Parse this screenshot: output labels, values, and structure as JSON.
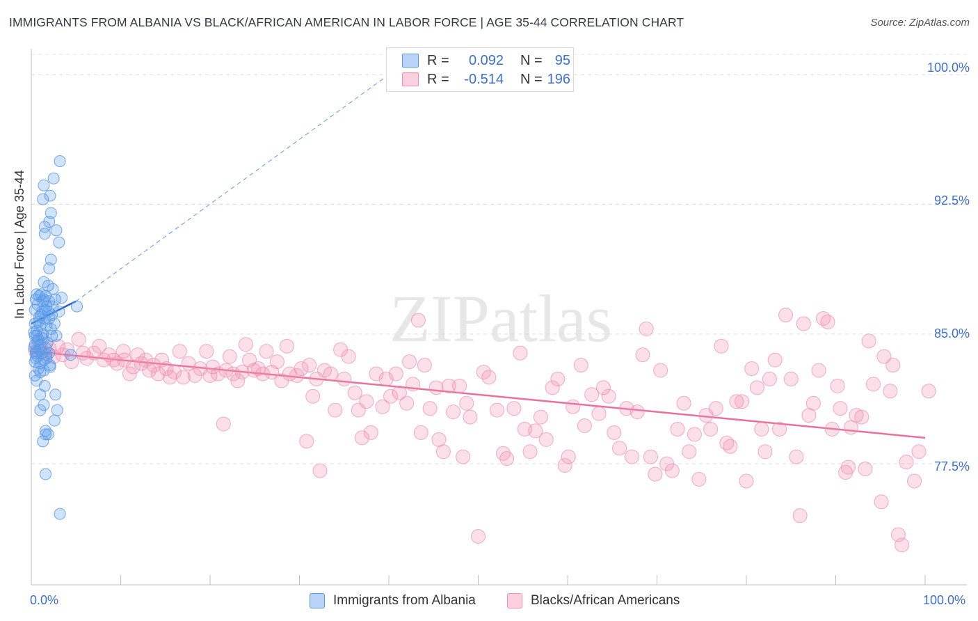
{
  "title": "IMMIGRANTS FROM ALBANIA VS BLACK/AFRICAN AMERICAN IN LABOR FORCE | AGE 35-44 CORRELATION CHART",
  "source": "Source: ZipAtlas.com",
  "watermark": "ZIPatlas",
  "legend": {
    "rows": [
      {
        "r_label": "R =",
        "r_value": "0.092",
        "n_label": "N =",
        "n_value": "95",
        "color": "#5b9ae8"
      },
      {
        "r_label": "R =",
        "r_value": "-0.514",
        "n_label": "N =",
        "n_value": "196",
        "color": "#f28fb0"
      }
    ]
  },
  "chart_data": {
    "type": "scatter",
    "title": "IMMIGRANTS FROM ALBANIA VS BLACK/AFRICAN AMERICAN IN LABOR FORCE | AGE 35-44 CORRELATION CHART",
    "xlabel": "",
    "ylabel": "In Labor Force | Age 35-44",
    "xlim": [
      0,
      100
    ],
    "ylim": [
      70.5,
      101.5
    ],
    "x_tick_labels": [
      "0.0%",
      "100.0%"
    ],
    "y_ticks": [
      77.5,
      85.0,
      92.5,
      100.0
    ],
    "y_tick_labels": [
      "77.5%",
      "85.0%",
      "92.5%",
      "100.0%"
    ],
    "series": [
      {
        "name": "Immigrants from Albania",
        "color": "#5b9ae8",
        "trend": {
          "x0": 0,
          "y0": 85.6,
          "x1": 5,
          "y1": 86.9,
          "extended_to_x": 40,
          "extended_y": 100.0
        },
        "points": [
          [
            3.2,
            95.0
          ],
          [
            1.4,
            93.6
          ],
          [
            2.5,
            94.0
          ],
          [
            1.3,
            92.8
          ],
          [
            2.1,
            93.0
          ],
          [
            2.2,
            92.0
          ],
          [
            2.0,
            91.5
          ],
          [
            1.5,
            91.2
          ],
          [
            2.8,
            91.0
          ],
          [
            3.1,
            90.3
          ],
          [
            1.5,
            90.8
          ],
          [
            2.2,
            89.3
          ],
          [
            2.0,
            88.8
          ],
          [
            1.4,
            88.0
          ],
          [
            1.9,
            87.8
          ],
          [
            2.4,
            87.6
          ],
          [
            0.6,
            87.3
          ],
          [
            1.1,
            87.3
          ],
          [
            1.6,
            87.2
          ],
          [
            3.4,
            87.1
          ],
          [
            0.5,
            87.0
          ],
          [
            1.3,
            86.9
          ],
          [
            2.0,
            86.9
          ],
          [
            2.7,
            87.0
          ],
          [
            0.7,
            86.7
          ],
          [
            1.7,
            86.6
          ],
          [
            2.4,
            86.6
          ],
          [
            5.1,
            86.6
          ],
          [
            0.4,
            86.4
          ],
          [
            1.2,
            86.3
          ],
          [
            3.1,
            86.3
          ],
          [
            0.9,
            86.0
          ],
          [
            1.5,
            85.9
          ],
          [
            2.0,
            85.9
          ],
          [
            0.4,
            85.6
          ],
          [
            1.0,
            85.5
          ],
          [
            1.7,
            85.5
          ],
          [
            2.2,
            85.3
          ],
          [
            0.6,
            85.2
          ],
          [
            1.3,
            85.0
          ],
          [
            0.4,
            84.9
          ],
          [
            2.3,
            84.9
          ],
          [
            2.8,
            84.9
          ],
          [
            0.8,
            84.7
          ],
          [
            1.4,
            84.7
          ],
          [
            0.4,
            84.4
          ],
          [
            1.0,
            84.3
          ],
          [
            1.6,
            84.2
          ],
          [
            0.5,
            84.0
          ],
          [
            1.2,
            83.9
          ],
          [
            2.0,
            83.9
          ],
          [
            0.7,
            83.7
          ],
          [
            4.4,
            83.8
          ],
          [
            0.5,
            83.6
          ],
          [
            1.4,
            83.5
          ],
          [
            1.7,
            83.6
          ],
          [
            0.4,
            83.4
          ],
          [
            1.0,
            83.3
          ],
          [
            2.1,
            83.1
          ],
          [
            0.8,
            83.0
          ],
          [
            1.4,
            82.9
          ],
          [
            0.4,
            82.6
          ],
          [
            0.6,
            82.3
          ],
          [
            1.5,
            82.0
          ],
          [
            1.0,
            81.5
          ],
          [
            2.7,
            81.5
          ],
          [
            1.4,
            80.9
          ],
          [
            1.0,
            80.6
          ],
          [
            2.9,
            80.6
          ],
          [
            2.6,
            80.0
          ],
          [
            1.6,
            79.4
          ],
          [
            1.6,
            79.2
          ],
          [
            1.9,
            79.2
          ],
          [
            1.3,
            78.8
          ],
          [
            1.6,
            76.9
          ],
          [
            3.2,
            74.6
          ],
          [
            0.9,
            84.1
          ],
          [
            1.8,
            84.5
          ],
          [
            0.3,
            85.1
          ],
          [
            1.1,
            86.1
          ],
          [
            0.6,
            84.9
          ],
          [
            1.9,
            86.3
          ],
          [
            2.6,
            85.6
          ],
          [
            0.9,
            87.2
          ],
          [
            1.5,
            86.4
          ],
          [
            0.5,
            83.9
          ],
          [
            1.2,
            84.8
          ],
          [
            2.3,
            86.1
          ],
          [
            0.8,
            85.7
          ],
          [
            1.7,
            83.8
          ],
          [
            0.3,
            84.2
          ],
          [
            1.4,
            87.0
          ],
          [
            2.1,
            83.2
          ],
          [
            1.0,
            82.8
          ],
          [
            0.7,
            84.6
          ]
        ]
      },
      {
        "name": "Blacks/African Americans",
        "color": "#f28fb0",
        "trend": {
          "x0": 0,
          "y0": 84.0,
          "x1": 100,
          "y1": 79.0
        },
        "points": [
          [
            0.5,
            84.0
          ],
          [
            1.0,
            84.3
          ],
          [
            1.5,
            83.9
          ],
          [
            2.0,
            84.2
          ],
          [
            2.5,
            83.7
          ],
          [
            3.0,
            84.3
          ],
          [
            3.5,
            83.8
          ],
          [
            4.0,
            84.1
          ],
          [
            4.5,
            83.4
          ],
          [
            5.3,
            84.7
          ],
          [
            5.8,
            83.9
          ],
          [
            6.2,
            83.6
          ],
          [
            7.0,
            83.9
          ],
          [
            7.6,
            84.3
          ],
          [
            8.1,
            83.5
          ],
          [
            8.7,
            83.8
          ],
          [
            9.2,
            83.5
          ],
          [
            9.6,
            83.3
          ],
          [
            10.3,
            84.0
          ],
          [
            10.4,
            83.5
          ],
          [
            11.0,
            82.7
          ],
          [
            11.4,
            83.1
          ],
          [
            11.9,
            83.8
          ],
          [
            12.3,
            83.3
          ],
          [
            12.8,
            83.5
          ],
          [
            13.2,
            82.9
          ],
          [
            13.7,
            83.2
          ],
          [
            14.2,
            82.7
          ],
          [
            14.6,
            83.5
          ],
          [
            15.1,
            83.0
          ],
          [
            15.5,
            82.5
          ],
          [
            16.0,
            82.8
          ],
          [
            16.6,
            84.0
          ],
          [
            17.0,
            82.5
          ],
          [
            17.6,
            83.3
          ],
          [
            18.3,
            82.6
          ],
          [
            18.9,
            83.0
          ],
          [
            19.6,
            84.0
          ],
          [
            20.0,
            82.6
          ],
          [
            20.3,
            83.1
          ],
          [
            20.9,
            82.7
          ],
          [
            21.5,
            79.8
          ],
          [
            21.8,
            82.9
          ],
          [
            22.2,
            83.7
          ],
          [
            22.6,
            82.7
          ],
          [
            23.1,
            82.3
          ],
          [
            23.6,
            82.8
          ],
          [
            24.0,
            84.4
          ],
          [
            24.4,
            83.5
          ],
          [
            24.9,
            82.9
          ],
          [
            25.4,
            83.0
          ],
          [
            25.9,
            82.7
          ],
          [
            26.3,
            84.0
          ],
          [
            26.9,
            82.8
          ],
          [
            27.5,
            83.4
          ],
          [
            28.0,
            82.3
          ],
          [
            28.6,
            84.3
          ],
          [
            28.9,
            82.7
          ],
          [
            29.7,
            82.6
          ],
          [
            30.2,
            83.0
          ],
          [
            30.8,
            78.8
          ],
          [
            31.1,
            83.2
          ],
          [
            31.5,
            81.4
          ],
          [
            31.9,
            82.4
          ],
          [
            32.3,
            77.1
          ],
          [
            32.8,
            82.9
          ],
          [
            33.5,
            82.7
          ],
          [
            34.0,
            80.6
          ],
          [
            34.6,
            84.1
          ],
          [
            35.0,
            82.4
          ],
          [
            35.5,
            83.7
          ],
          [
            36.2,
            81.6
          ],
          [
            36.6,
            80.6
          ],
          [
            37.0,
            79.0
          ],
          [
            37.5,
            81.1
          ],
          [
            38.0,
            79.3
          ],
          [
            38.6,
            82.7
          ],
          [
            39.3,
            80.8
          ],
          [
            39.7,
            82.4
          ],
          [
            40.2,
            81.4
          ],
          [
            40.8,
            82.7
          ],
          [
            41.2,
            81.6
          ],
          [
            42.0,
            81.0
          ],
          [
            42.3,
            83.4
          ],
          [
            42.7,
            82.1
          ],
          [
            43.3,
            85.8
          ],
          [
            43.6,
            79.3
          ],
          [
            44.0,
            83.2
          ],
          [
            44.6,
            80.7
          ],
          [
            45.3,
            81.9
          ],
          [
            45.6,
            78.9
          ],
          [
            46.1,
            78.2
          ],
          [
            46.7,
            82.0
          ],
          [
            47.2,
            80.5
          ],
          [
            47.9,
            82.0
          ],
          [
            48.3,
            77.9
          ],
          [
            48.7,
            81.0
          ],
          [
            49.1,
            80.2
          ],
          [
            50.0,
            73.3
          ],
          [
            50.6,
            82.8
          ],
          [
            51.2,
            82.5
          ],
          [
            52.1,
            80.6
          ],
          [
            52.8,
            78.1
          ],
          [
            53.2,
            77.8
          ],
          [
            54.0,
            80.7
          ],
          [
            54.7,
            83.9
          ],
          [
            55.2,
            79.5
          ],
          [
            55.8,
            78.2
          ],
          [
            56.4,
            79.4
          ],
          [
            57.0,
            80.2
          ],
          [
            57.6,
            78.9
          ],
          [
            58.3,
            81.9
          ],
          [
            58.9,
            82.4
          ],
          [
            59.7,
            77.4
          ],
          [
            60.1,
            77.9
          ],
          [
            60.6,
            80.8
          ],
          [
            61.5,
            83.2
          ],
          [
            61.9,
            79.7
          ],
          [
            62.7,
            81.5
          ],
          [
            63.5,
            80.4
          ],
          [
            64.0,
            81.9
          ],
          [
            64.6,
            81.4
          ],
          [
            65.2,
            79.3
          ],
          [
            65.8,
            78.4
          ],
          [
            66.6,
            80.7
          ],
          [
            67.2,
            77.9
          ],
          [
            67.8,
            80.5
          ],
          [
            68.4,
            83.8
          ],
          [
            68.8,
            85.3
          ],
          [
            69.3,
            77.9
          ],
          [
            69.8,
            76.9
          ],
          [
            70.4,
            82.9
          ],
          [
            71.1,
            77.5
          ],
          [
            71.7,
            77.1
          ],
          [
            72.3,
            79.5
          ],
          [
            73.0,
            81.0
          ],
          [
            73.6,
            78.2
          ],
          [
            74.2,
            79.2
          ],
          [
            74.7,
            76.6
          ],
          [
            75.5,
            80.3
          ],
          [
            76.0,
            79.5
          ],
          [
            76.6,
            80.7
          ],
          [
            77.2,
            84.3
          ],
          [
            77.8,
            78.7
          ],
          [
            78.2,
            78.5
          ],
          [
            78.9,
            81.1
          ],
          [
            79.5,
            81.1
          ],
          [
            80.0,
            76.5
          ],
          [
            80.6,
            83.0
          ],
          [
            81.2,
            81.9
          ],
          [
            81.7,
            79.5
          ],
          [
            82.1,
            78.2
          ],
          [
            82.6,
            82.4
          ],
          [
            83.2,
            83.5
          ],
          [
            83.7,
            79.5
          ],
          [
            84.4,
            86.1
          ],
          [
            85.0,
            82.4
          ],
          [
            85.6,
            77.9
          ],
          [
            86.0,
            74.5
          ],
          [
            86.4,
            85.6
          ],
          [
            87.0,
            80.3
          ],
          [
            87.5,
            81.0
          ],
          [
            88.1,
            82.9
          ],
          [
            88.6,
            85.9
          ],
          [
            89.1,
            85.7
          ],
          [
            89.6,
            79.5
          ],
          [
            90.2,
            82.0
          ],
          [
            90.5,
            80.7
          ],
          [
            91.1,
            77.0
          ],
          [
            91.4,
            77.3
          ],
          [
            91.7,
            79.6
          ],
          [
            92.3,
            80.3
          ],
          [
            92.9,
            80.2
          ],
          [
            93.3,
            77.2
          ],
          [
            93.7,
            84.6
          ],
          [
            94.2,
            82.1
          ],
          [
            95.1,
            75.3
          ],
          [
            95.4,
            83.7
          ],
          [
            96.1,
            81.7
          ],
          [
            96.4,
            83.2
          ],
          [
            97.0,
            73.4
          ],
          [
            97.4,
            72.8
          ],
          [
            97.9,
            77.6
          ],
          [
            98.8,
            76.5
          ],
          [
            99.3,
            78.2
          ],
          [
            100.4,
            81.7
          ]
        ]
      }
    ]
  },
  "bottom_legend": [
    {
      "label": "Immigrants from Albania",
      "color": "#5b9ae8"
    },
    {
      "label": "Blacks/African Americans",
      "color": "#f28fb0"
    }
  ]
}
